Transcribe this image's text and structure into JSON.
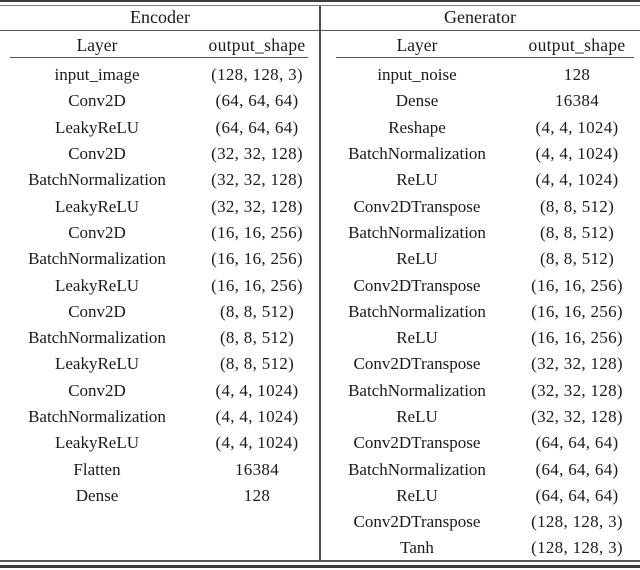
{
  "colors": {
    "background": "#ffffff",
    "text": "#1a1a1a",
    "rule": "#4a4a4a"
  },
  "tables": [
    {
      "title": "Encoder",
      "columns": [
        "Layer",
        "output_shape"
      ],
      "rows": [
        [
          "input_image",
          "(128, 128, 3)"
        ],
        [
          "Conv2D",
          "(64, 64, 64)"
        ],
        [
          "LeakyReLU",
          "(64, 64, 64)"
        ],
        [
          "Conv2D",
          "(32, 32, 128)"
        ],
        [
          "BatchNormalization",
          "(32, 32, 128)"
        ],
        [
          "LeakyReLU",
          "(32, 32, 128)"
        ],
        [
          "Conv2D",
          "(16, 16, 256)"
        ],
        [
          "BatchNormalization",
          "(16, 16, 256)"
        ],
        [
          "LeakyReLU",
          "(16, 16, 256)"
        ],
        [
          "Conv2D",
          "(8, 8, 512)"
        ],
        [
          "BatchNormalization",
          "(8, 8, 512)"
        ],
        [
          "LeakyReLU",
          "(8, 8, 512)"
        ],
        [
          "Conv2D",
          "(4, 4, 1024)"
        ],
        [
          "BatchNormalization",
          "(4, 4, 1024)"
        ],
        [
          "LeakyReLU",
          "(4, 4, 1024)"
        ],
        [
          "Flatten",
          "16384"
        ],
        [
          "Dense",
          "128"
        ]
      ]
    },
    {
      "title": "Generator",
      "columns": [
        "Layer",
        "output_shape"
      ],
      "rows": [
        [
          "input_noise",
          "128"
        ],
        [
          "Dense",
          "16384"
        ],
        [
          "Reshape",
          "(4, 4, 1024)"
        ],
        [
          "BatchNormalization",
          "(4, 4, 1024)"
        ],
        [
          "ReLU",
          "(4, 4, 1024)"
        ],
        [
          "Conv2DTranspose",
          "(8, 8, 512)"
        ],
        [
          "BatchNormalization",
          "(8, 8, 512)"
        ],
        [
          "ReLU",
          "(8, 8, 512)"
        ],
        [
          "Conv2DTranspose",
          "(16, 16, 256)"
        ],
        [
          "BatchNormalization",
          "(16, 16, 256)"
        ],
        [
          "ReLU",
          "(16, 16, 256)"
        ],
        [
          "Conv2DTranspose",
          "(32, 32, 128)"
        ],
        [
          "BatchNormalization",
          "(32, 32, 128)"
        ],
        [
          "ReLU",
          "(32, 32, 128)"
        ],
        [
          "Conv2DTranspose",
          "(64, 64, 64)"
        ],
        [
          "BatchNormalization",
          "(64, 64, 64)"
        ],
        [
          "ReLU",
          "(64, 64, 64)"
        ],
        [
          "Conv2DTranspose",
          "(128, 128, 3)"
        ],
        [
          "Tanh",
          "(128, 128, 3)"
        ]
      ]
    }
  ]
}
